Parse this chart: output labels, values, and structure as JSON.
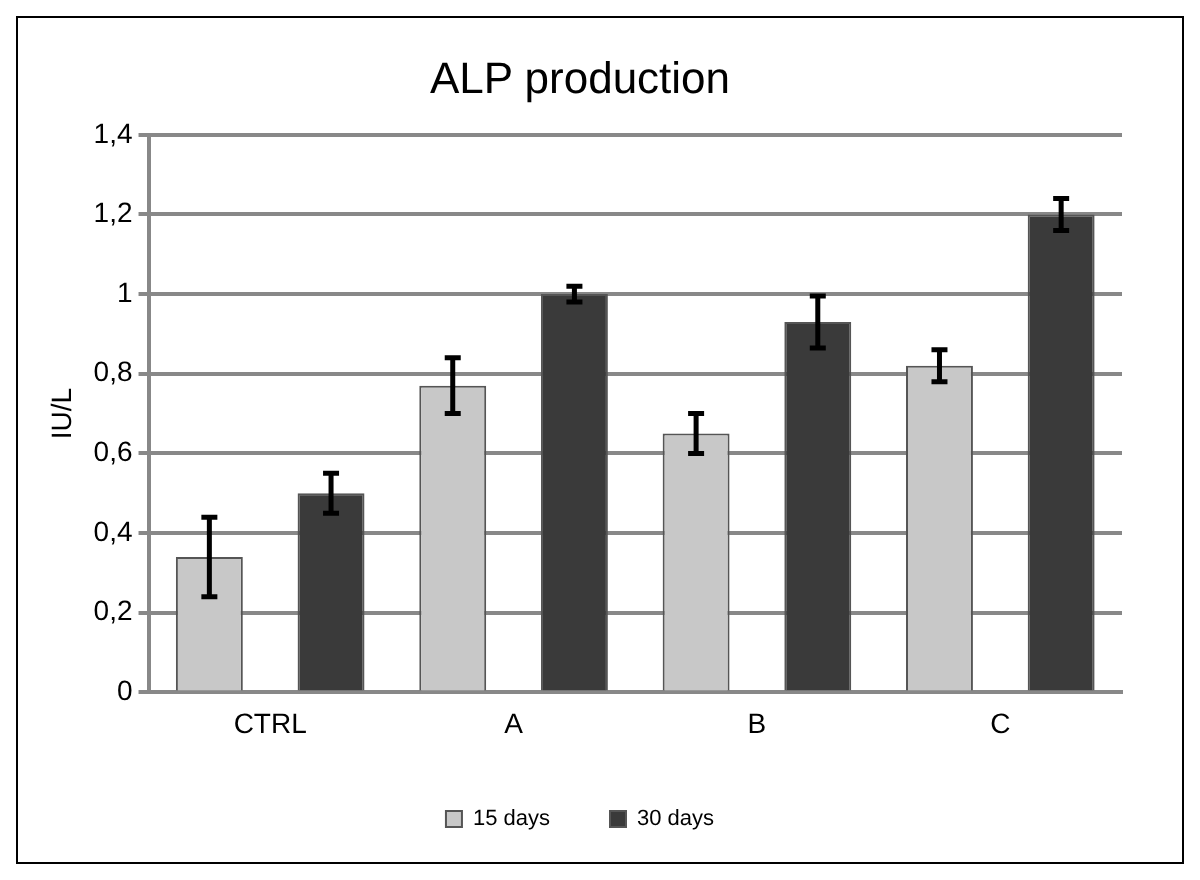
{
  "chart_data": {
    "type": "bar",
    "title": "ALP production",
    "ylabel": "IU/L",
    "categories": [
      "CTRL",
      "A",
      "B",
      "C"
    ],
    "series": [
      {
        "name": "15 days",
        "color": "#c8c8c8",
        "values": [
          0.34,
          0.77,
          0.65,
          0.82
        ],
        "errors": [
          0.1,
          0.07,
          0.05,
          0.04
        ]
      },
      {
        "name": "30 days",
        "color": "#3a3a3a",
        "values": [
          0.5,
          1.0,
          0.93,
          1.2
        ],
        "errors": [
          0.05,
          0.02,
          0.065,
          0.04
        ]
      }
    ],
    "ylim": [
      0,
      1.4
    ],
    "yticks": [
      0,
      {
        "value": 0.2,
        "label": "0,2"
      },
      {
        "value": 0.4,
        "label": "0,4"
      },
      {
        "value": 0.6,
        "label": "0,6"
      },
      {
        "value": 0.8,
        "label": "0,8"
      },
      1,
      {
        "value": 1.2,
        "label": "1,2"
      },
      {
        "value": 1.4,
        "label": "1,4"
      }
    ],
    "grid": "y",
    "legend": "bottom"
  }
}
